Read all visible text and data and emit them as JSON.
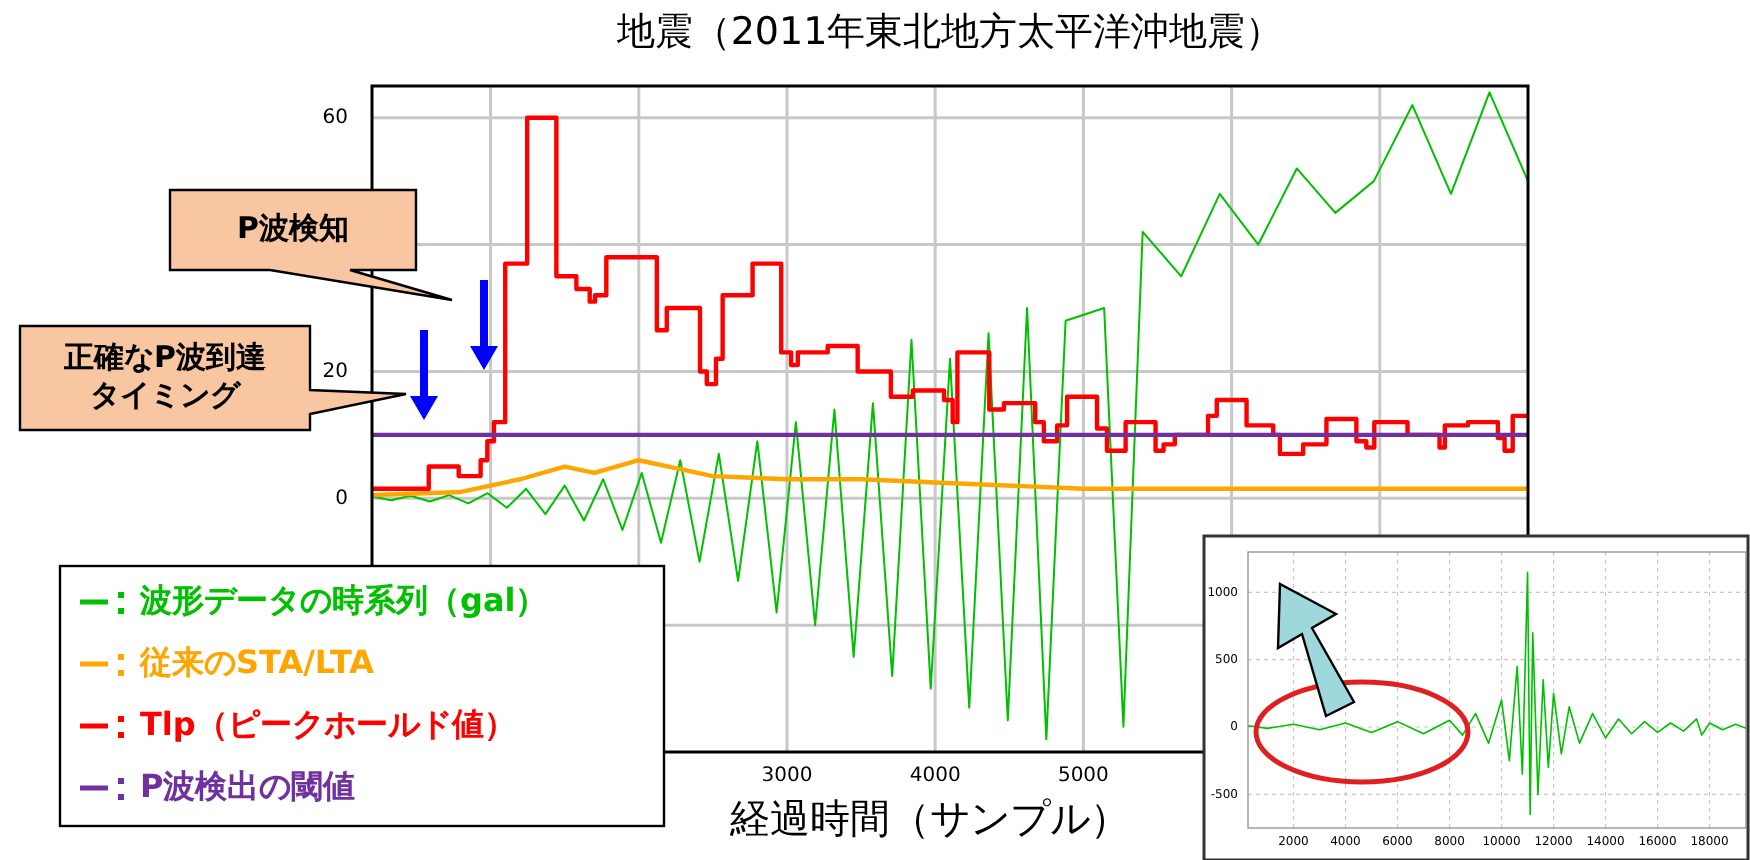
{
  "chart_data": [
    {
      "type": "line",
      "title": "地震（2011年東北地方太平洋沖地震）",
      "xlabel": "経過時間（サンプル）",
      "xlim": [
        200,
        8000
      ],
      "ylim": [
        -40,
        65
      ],
      "xticks": [
        {
          "value": 1000,
          "label": null
        },
        {
          "value": 2000,
          "label": null
        },
        3000,
        4000,
        5000,
        {
          "value": 6000,
          "label": null
        },
        {
          "value": 7000,
          "label": null
        }
      ],
      "yticks": [
        {
          "value": -20,
          "label": null
        },
        0,
        20,
        {
          "value": 40,
          "label": null
        },
        60
      ],
      "grid": true,
      "legend": "bottom left",
      "annotations": [
        "P波検知",
        "正確なP波到達タイミング"
      ],
      "series": [
        {
          "name": "波形データの時系列（gal）",
          "color": "#00c000",
          "x": [
            200,
            330,
            460,
            590,
            720,
            850,
            980,
            1110,
            1240,
            1370,
            1500,
            1630,
            1760,
            1890,
            2020,
            2150,
            2280,
            2410,
            2540,
            2670,
            2800,
            2930,
            3060,
            3190,
            3320,
            3450,
            3580,
            3710,
            3840,
            3970,
            4100,
            4230,
            4360,
            4490,
            4620,
            4750,
            4880,
            5010,
            5140,
            5270,
            5400,
            5530,
            5660,
            5790,
            5920,
            6050,
            6180,
            6310,
            6440,
            6570,
            6700,
            6830,
            6960,
            7090,
            7220,
            7350,
            7480,
            7610,
            7740,
            7870,
            8000
          ],
          "values": [
            0.3,
            -0.3,
            0.4,
            -0.5,
            0.5,
            -0.8,
            0.8,
            -1.5,
            1.5,
            -2.5,
            2,
            -3.5,
            3,
            -5,
            4,
            -7,
            6,
            -10,
            7,
            -13,
            9,
            -18,
            12,
            -20,
            14,
            -25,
            15,
            -28,
            25,
            -30,
            22,
            -33,
            26,
            -35,
            30,
            -38,
            28,
            null,
            30,
            -36,
            42,
            null,
            35,
            null,
            48,
            null,
            40,
            null,
            52,
            null,
            45,
            null,
            50,
            null,
            62,
            null,
            48,
            null,
            64,
            null,
            50
          ]
        },
        {
          "name": "従来のSTA/LTA",
          "color": "#ffa500",
          "x": [
            200,
            800,
            1000,
            1200,
            1500,
            1700,
            2000,
            2200,
            2500,
            3000,
            3500,
            4000,
            5000,
            6000,
            7000,
            8000
          ],
          "values": [
            0.5,
            1,
            2,
            3,
            5,
            4,
            6,
            5,
            3.5,
            3,
            3,
            2.5,
            1.5,
            1.5,
            1.5,
            1.5
          ]
        },
        {
          "name": "Tlp（ピークホールド値）",
          "type": "step",
          "color": "#ff0000",
          "x": [
            200,
            583,
            785,
            933,
            978,
            1023,
            1099,
            1247,
            1444,
            1579,
            1669,
            1705,
            1781,
            2122,
            2189,
            2413,
            2459,
            2521,
            2566,
            2768,
            2961,
            3028,
            3073,
            3275,
            3477,
            3701,
            3849,
            4060,
            4118,
            4150,
            4365,
            4464,
            4675,
            4733,
            4823,
            4890,
            5092,
            5159,
            5285,
            5487,
            5541,
            5617,
            5841,
            5900,
            6101,
            6281,
            6326,
            6483,
            6640,
            6842,
            6909,
            6963,
            7187,
            7403,
            7439,
            7595,
            7797,
            7842,
            7897,
            8000
          ],
          "values": [
            1.5,
            5,
            3.5,
            6,
            9,
            12,
            37,
            60,
            35,
            33,
            31,
            32,
            38,
            26.5,
            30,
            20,
            18,
            22,
            32,
            37,
            23,
            21,
            23,
            24,
            20,
            16,
            17,
            15.5,
            12,
            23,
            14,
            15,
            12,
            9,
            11.5,
            16,
            11,
            7.5,
            12,
            7.5,
            8.5,
            10,
            13,
            15.5,
            11.5,
            10,
            7,
            8.5,
            12.5,
            9,
            8,
            12,
            10,
            8,
            11.5,
            12,
            9.5,
            7.5,
            13,
            13
          ]
        },
        {
          "name": "P波検出の閾値",
          "color": "#7030a0",
          "x": [
            200,
            8000
          ],
          "values": [
            10,
            10
          ]
        }
      ]
    },
    {
      "type": "line",
      "xlim": [
        250,
        19400
      ],
      "ylim": [
        -750,
        1300
      ],
      "xticks": [
        2000,
        4000,
        6000,
        8000,
        10000,
        12000,
        14000,
        16000,
        18000
      ],
      "yticks": [
        -500,
        0,
        500,
        1000
      ],
      "grid": true,
      "series": [
        {
          "color": "#00c000",
          "x": [
            250,
            1000,
            2000,
            3000,
            4000,
            5000,
            6000,
            7000,
            8000,
            8500,
            9000,
            9500,
            10000,
            10300,
            10600,
            10800,
            11000,
            11100,
            11200,
            11400,
            11600,
            11800,
            12000,
            12300,
            12600,
            13000,
            13500,
            14000,
            14500,
            15000,
            15500,
            16000,
            16500,
            17000,
            17500,
            17700,
            18000,
            18500,
            19000,
            19400
          ],
          "values": [
            10,
            -10,
            20,
            -20,
            30,
            -40,
            40,
            -50,
            50,
            -60,
            100,
            -120,
            200,
            -250,
            450,
            -350,
            1150,
            -650,
            700,
            -500,
            350,
            -300,
            250,
            -200,
            150,
            -120,
            100,
            -80,
            60,
            -50,
            40,
            -40,
            30,
            -30,
            60,
            -60,
            30,
            -20,
            20,
            -10
          ]
        }
      ]
    }
  ]
}
